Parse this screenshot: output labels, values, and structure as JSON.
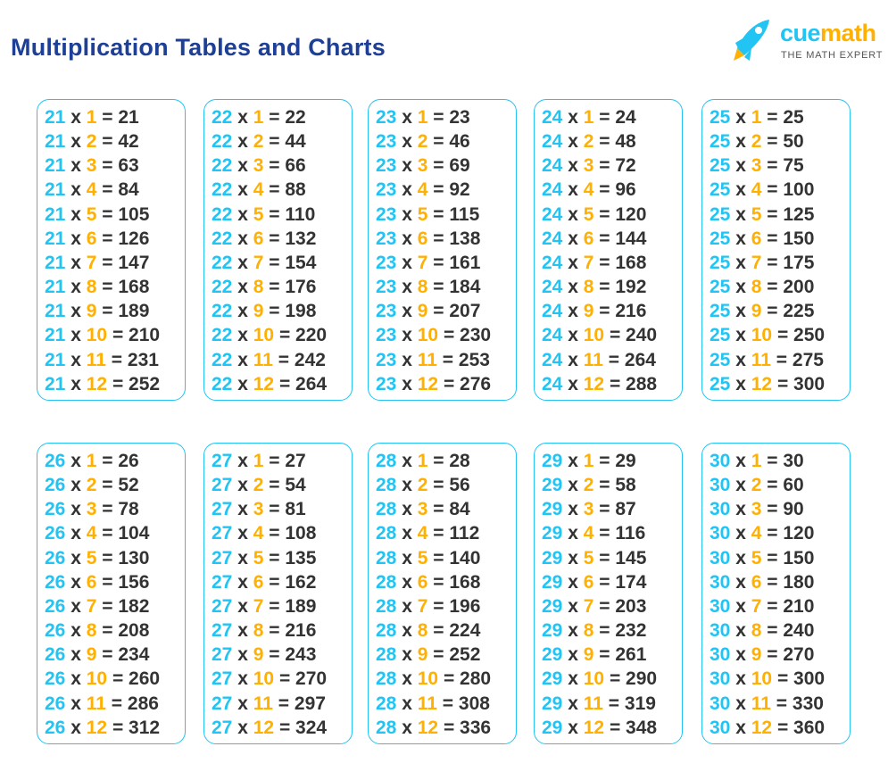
{
  "title": "Multiplication Tables and Charts",
  "logo": {
    "brand_part1": "cue",
    "brand_part2": "math",
    "tagline": "THE MATH EXPERT",
    "icon": "rocket-icon"
  },
  "colors": {
    "base": "#21c4f3",
    "multiplier": "#ffb000",
    "text": "#333333",
    "title": "#1d3f95",
    "border": "#21c4f3"
  },
  "operator_times": "x",
  "operator_equals": "=",
  "tables": [
    {
      "base": "21",
      "rows": [
        [
          "1",
          "21"
        ],
        [
          "2",
          "42"
        ],
        [
          "3",
          "63"
        ],
        [
          "4",
          "84"
        ],
        [
          "5",
          "105"
        ],
        [
          "6",
          "126"
        ],
        [
          "7",
          "147"
        ],
        [
          "8",
          "168"
        ],
        [
          "9",
          "189"
        ],
        [
          "10",
          "210"
        ],
        [
          "11",
          "231"
        ],
        [
          "12",
          "252"
        ]
      ]
    },
    {
      "base": "22",
      "rows": [
        [
          "1",
          "22"
        ],
        [
          "2",
          "44"
        ],
        [
          "3",
          "66"
        ],
        [
          "4",
          "88"
        ],
        [
          "5",
          "110"
        ],
        [
          "6",
          "132"
        ],
        [
          "7",
          "154"
        ],
        [
          "8",
          "176"
        ],
        [
          "9",
          "198"
        ],
        [
          "10",
          "220"
        ],
        [
          "11",
          "242"
        ],
        [
          "12",
          "264"
        ]
      ]
    },
    {
      "base": "23",
      "rows": [
        [
          "1",
          "23"
        ],
        [
          "2",
          "46"
        ],
        [
          "3",
          "69"
        ],
        [
          "4",
          "92"
        ],
        [
          "5",
          "115"
        ],
        [
          "6",
          "138"
        ],
        [
          "7",
          "161"
        ],
        [
          "8",
          "184"
        ],
        [
          "9",
          "207"
        ],
        [
          "10",
          "230"
        ],
        [
          "11",
          "253"
        ],
        [
          "12",
          "276"
        ]
      ]
    },
    {
      "base": "24",
      "rows": [
        [
          "1",
          "24"
        ],
        [
          "2",
          "48"
        ],
        [
          "3",
          "72"
        ],
        [
          "4",
          "96"
        ],
        [
          "5",
          "120"
        ],
        [
          "6",
          "144"
        ],
        [
          "7",
          "168"
        ],
        [
          "8",
          "192"
        ],
        [
          "9",
          "216"
        ],
        [
          "10",
          "240"
        ],
        [
          "11",
          "264"
        ],
        [
          "12",
          "288"
        ]
      ]
    },
    {
      "base": "25",
      "rows": [
        [
          "1",
          "25"
        ],
        [
          "2",
          "50"
        ],
        [
          "3",
          "75"
        ],
        [
          "4",
          "100"
        ],
        [
          "5",
          "125"
        ],
        [
          "6",
          "150"
        ],
        [
          "7",
          "175"
        ],
        [
          "8",
          "200"
        ],
        [
          "9",
          "225"
        ],
        [
          "10",
          "250"
        ],
        [
          "11",
          "275"
        ],
        [
          "12",
          "300"
        ]
      ]
    },
    {
      "base": "26",
      "rows": [
        [
          "1",
          "26"
        ],
        [
          "2",
          "52"
        ],
        [
          "3",
          "78"
        ],
        [
          "4",
          "104"
        ],
        [
          "5",
          "130"
        ],
        [
          "6",
          "156"
        ],
        [
          "7",
          "182"
        ],
        [
          "8",
          "208"
        ],
        [
          "9",
          "234"
        ],
        [
          "10",
          "260"
        ],
        [
          "11",
          "286"
        ],
        [
          "12",
          "312"
        ]
      ]
    },
    {
      "base": "27",
      "rows": [
        [
          "1",
          "27"
        ],
        [
          "2",
          "54"
        ],
        [
          "3",
          "81"
        ],
        [
          "4",
          "108"
        ],
        [
          "5",
          "135"
        ],
        [
          "6",
          "162"
        ],
        [
          "7",
          "189"
        ],
        [
          "8",
          "216"
        ],
        [
          "9",
          "243"
        ],
        [
          "10",
          "270"
        ],
        [
          "11",
          "297"
        ],
        [
          "12",
          "324"
        ]
      ]
    },
    {
      "base": "28",
      "rows": [
        [
          "1",
          "28"
        ],
        [
          "2",
          "56"
        ],
        [
          "3",
          "84"
        ],
        [
          "4",
          "112"
        ],
        [
          "5",
          "140"
        ],
        [
          "6",
          "168"
        ],
        [
          "7",
          "196"
        ],
        [
          "8",
          "224"
        ],
        [
          "9",
          "252"
        ],
        [
          "10",
          "280"
        ],
        [
          "11",
          "308"
        ],
        [
          "12",
          "336"
        ]
      ]
    },
    {
      "base": "29",
      "rows": [
        [
          "1",
          "29"
        ],
        [
          "2",
          "58"
        ],
        [
          "3",
          "87"
        ],
        [
          "4",
          "116"
        ],
        [
          "5",
          "145"
        ],
        [
          "6",
          "174"
        ],
        [
          "7",
          "203"
        ],
        [
          "8",
          "232"
        ],
        [
          "9",
          "261"
        ],
        [
          "10",
          "290"
        ],
        [
          "11",
          "319"
        ],
        [
          "12",
          "348"
        ]
      ]
    },
    {
      "base": "30",
      "rows": [
        [
          "1",
          "30"
        ],
        [
          "2",
          "60"
        ],
        [
          "3",
          "90"
        ],
        [
          "4",
          "120"
        ],
        [
          "5",
          "150"
        ],
        [
          "6",
          "180"
        ],
        [
          "7",
          "210"
        ],
        [
          "8",
          "240"
        ],
        [
          "9",
          "270"
        ],
        [
          "10",
          "300"
        ],
        [
          "11",
          "330"
        ],
        [
          "12",
          "360"
        ]
      ]
    }
  ]
}
